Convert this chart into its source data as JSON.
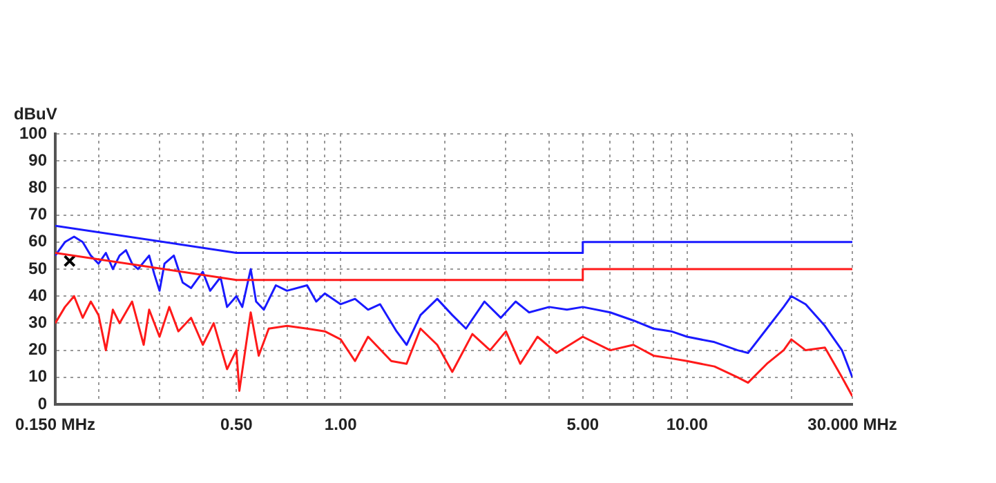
{
  "chart_data": {
    "type": "line",
    "ylabel": "dBuV",
    "log": "x",
    "grid": true,
    "legend": false,
    "marker": "none",
    "line_style": "solid",
    "xlim": [
      0.15,
      30
    ],
    "ylim": [
      0,
      100
    ],
    "xticks": [
      {
        "value": 0.15,
        "label": "0.150 MHz"
      },
      {
        "value": 0.2,
        "label": null
      },
      {
        "value": 0.3,
        "label": null
      },
      {
        "value": 0.4,
        "label": null
      },
      {
        "value": 0.5,
        "label": "0.50"
      },
      {
        "value": 0.6,
        "label": null
      },
      {
        "value": 0.7,
        "label": null
      },
      {
        "value": 0.8,
        "label": null
      },
      {
        "value": 0.9,
        "label": null
      },
      {
        "value": 1,
        "label": "1.00"
      },
      {
        "value": 2,
        "label": null
      },
      {
        "value": 3,
        "label": null
      },
      {
        "value": 4,
        "label": null
      },
      {
        "value": 5,
        "label": "5.00"
      },
      {
        "value": 6,
        "label": null
      },
      {
        "value": 7,
        "label": null
      },
      {
        "value": 8,
        "label": null
      },
      {
        "value": 9,
        "label": null
      },
      {
        "value": 10,
        "label": "10.00"
      },
      {
        "value": 20,
        "label": null
      },
      {
        "value": 30,
        "label": "30.000 MHz"
      }
    ],
    "yticks": [
      0,
      10,
      20,
      30,
      40,
      50,
      60,
      70,
      80,
      90,
      100
    ],
    "series": [
      {
        "color": "#1a1aff",
        "x": [
          0.15,
          0.5,
          5,
          5,
          30
        ],
        "values": [
          66,
          56,
          56,
          60,
          60
        ]
      },
      {
        "color": "#ff1a1a",
        "x": [
          0.15,
          0.5,
          5,
          5,
          30
        ],
        "values": [
          56,
          46,
          46,
          50,
          50
        ]
      },
      {
        "color": "#1a1aff",
        "x": [
          0.15,
          0.16,
          0.17,
          0.18,
          0.19,
          0.2,
          0.21,
          0.22,
          0.23,
          0.24,
          0.25,
          0.26,
          0.28,
          0.29,
          0.3,
          0.31,
          0.33,
          0.35,
          0.37,
          0.4,
          0.42,
          0.45,
          0.47,
          0.5,
          0.52,
          0.55,
          0.57,
          0.6,
          0.65,
          0.7,
          0.8,
          0.85,
          0.9,
          1,
          1.1,
          1.2,
          1.3,
          1.45,
          1.55,
          1.7,
          1.9,
          2.1,
          2.3,
          2.6,
          2.9,
          3.2,
          3.5,
          4,
          4.5,
          5,
          6,
          7,
          8,
          9,
          10,
          12,
          14,
          15,
          17,
          19,
          20,
          22,
          25,
          28,
          30
        ],
        "values": [
          55,
          60,
          62,
          60,
          55,
          52,
          56,
          50,
          55,
          57,
          52,
          50,
          55,
          48,
          42,
          52,
          55,
          45,
          43,
          49,
          42,
          47,
          36,
          40,
          36,
          50,
          38,
          35,
          44,
          42,
          44,
          38,
          41,
          37,
          39,
          35,
          37,
          27,
          22,
          33,
          39,
          33,
          28,
          38,
          32,
          38,
          34,
          36,
          35,
          36,
          34,
          31,
          28,
          27,
          25,
          23,
          20,
          19,
          28,
          36,
          40,
          37,
          29,
          20,
          10
        ]
      },
      {
        "color": "#ff1a1a",
        "x": [
          0.15,
          0.16,
          0.17,
          0.18,
          0.19,
          0.2,
          0.21,
          0.22,
          0.23,
          0.25,
          0.27,
          0.28,
          0.3,
          0.32,
          0.34,
          0.37,
          0.4,
          0.43,
          0.47,
          0.5,
          0.51,
          0.55,
          0.58,
          0.62,
          0.7,
          0.8,
          0.9,
          1,
          1.1,
          1.2,
          1.4,
          1.55,
          1.7,
          1.9,
          2.1,
          2.4,
          2.7,
          3,
          3.3,
          3.7,
          4.2,
          5,
          6,
          7,
          8,
          9,
          10,
          12,
          14,
          15,
          17,
          19,
          20,
          22,
          25,
          28,
          30
        ],
        "values": [
          30,
          36,
          40,
          32,
          38,
          33,
          20,
          35,
          30,
          38,
          22,
          35,
          25,
          36,
          27,
          32,
          22,
          30,
          13,
          20,
          5,
          34,
          18,
          28,
          29,
          28,
          27,
          24,
          16,
          25,
          16,
          15,
          28,
          22,
          12,
          26,
          20,
          27,
          15,
          25,
          19,
          25,
          20,
          22,
          18,
          17,
          16,
          14,
          10,
          8,
          15,
          20,
          24,
          20,
          21,
          10,
          3
        ]
      },
      {
        "type": "scatter",
        "color": "#000000",
        "marker": "cross",
        "x": [
          0.165
        ],
        "values": [
          53
        ]
      }
    ]
  }
}
